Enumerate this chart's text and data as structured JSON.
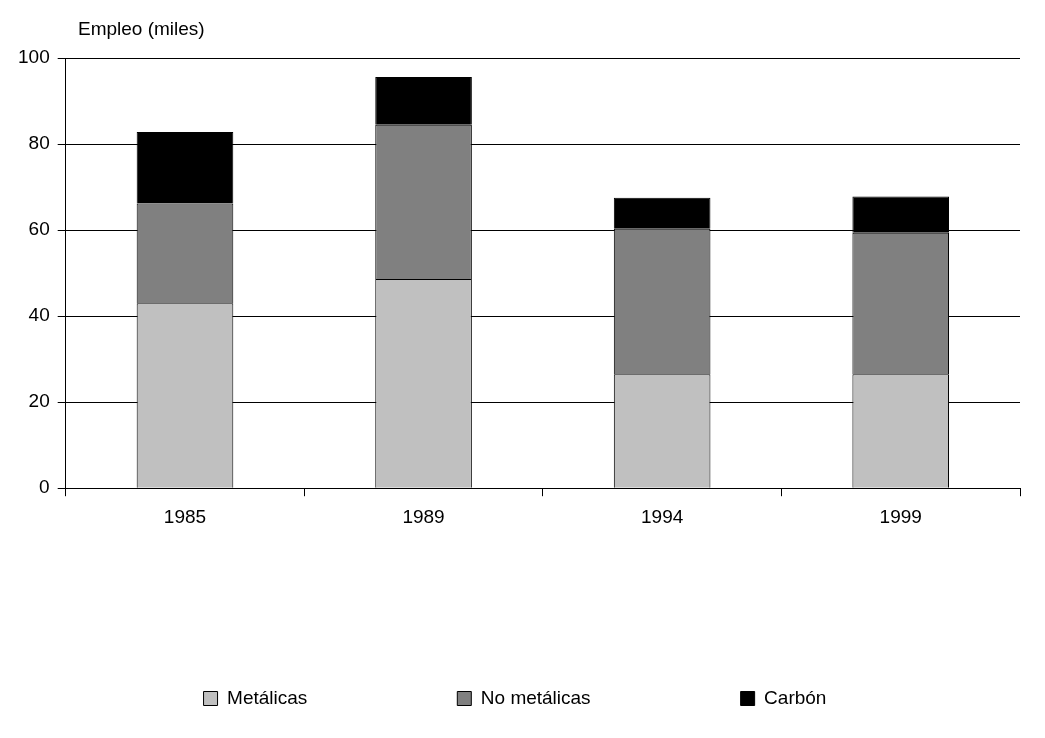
{
  "chart_data": {
    "type": "bar",
    "ylabel": "Empleo (miles)",
    "categories": [
      "1985",
      "1989",
      "1994",
      "1999"
    ],
    "stacked": true,
    "series": [
      {
        "name": "Metálicas",
        "color": "#c0c0c0",
        "values": [
          43.0,
          48.6,
          26.5,
          26.5
        ]
      },
      {
        "name": "No metálicas",
        "color": "#808080",
        "values": [
          23.2,
          35.9,
          33.8,
          32.9
        ]
      },
      {
        "name": "Carbón",
        "color": "#000000",
        "values": [
          16.6,
          11.1,
          7.2,
          8.4
        ]
      }
    ],
    "ylim": [
      0,
      100
    ],
    "yticks": [
      0,
      20,
      40,
      60,
      80,
      100
    ],
    "grid": "y",
    "legend": "bottom"
  }
}
